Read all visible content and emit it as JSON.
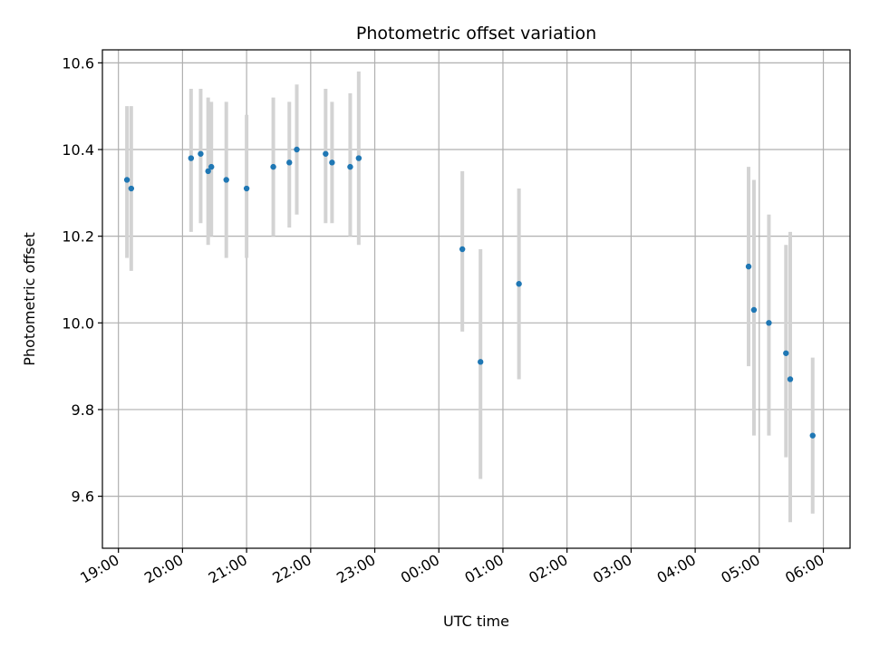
{
  "chart_data": {
    "type": "scatter",
    "title": "Photometric offset variation",
    "xlabel": "UTC time",
    "ylabel": "Photometric offset",
    "grid": true,
    "ylim": [
      9.48,
      10.63
    ],
    "xlim": [
      "18:45",
      "06:25"
    ],
    "x_ticks": [
      "19:00",
      "20:00",
      "21:00",
      "22:00",
      "23:00",
      "00:00",
      "01:00",
      "02:00",
      "03:00",
      "04:00",
      "05:00",
      "06:00"
    ],
    "y_ticks": [
      "9.6",
      "9.8",
      "10.0",
      "10.2",
      "10.4",
      "10.6"
    ],
    "colors": {
      "marker": "#1f77b4",
      "errorbar": "#d3d3d3",
      "grid": "#b0b0b0"
    },
    "series": [
      {
        "x": [
          "19:08",
          "19:12",
          "20:08",
          "20:17",
          "20:24",
          "20:27",
          "20:41",
          "21:00",
          "21:25",
          "21:40",
          "21:47",
          "22:14",
          "22:20",
          "22:37",
          "22:45",
          "00:22",
          "00:39",
          "01:15",
          "04:50",
          "04:55",
          "05:09",
          "05:25",
          "05:29",
          "05:50"
        ],
        "y": [
          10.33,
          10.31,
          10.38,
          10.39,
          10.35,
          10.36,
          10.33,
          10.31,
          10.36,
          10.37,
          10.4,
          10.39,
          10.37,
          10.36,
          10.38,
          10.17,
          9.91,
          10.09,
          10.13,
          10.03,
          10.0,
          9.93,
          9.87,
          9.74
        ],
        "yerr_low": [
          10.15,
          10.12,
          10.21,
          10.23,
          10.18,
          10.2,
          10.15,
          10.15,
          10.2,
          10.22,
          10.25,
          10.23,
          10.23,
          10.2,
          10.18,
          9.98,
          9.64,
          9.87,
          9.9,
          9.74,
          9.74,
          9.69,
          9.54,
          9.56
        ],
        "yerr_high": [
          10.5,
          10.5,
          10.54,
          10.54,
          10.52,
          10.51,
          10.51,
          10.48,
          10.52,
          10.51,
          10.55,
          10.54,
          10.51,
          10.53,
          10.58,
          10.35,
          10.17,
          10.31,
          10.36,
          10.33,
          10.25,
          10.18,
          10.21,
          9.92
        ]
      }
    ]
  }
}
